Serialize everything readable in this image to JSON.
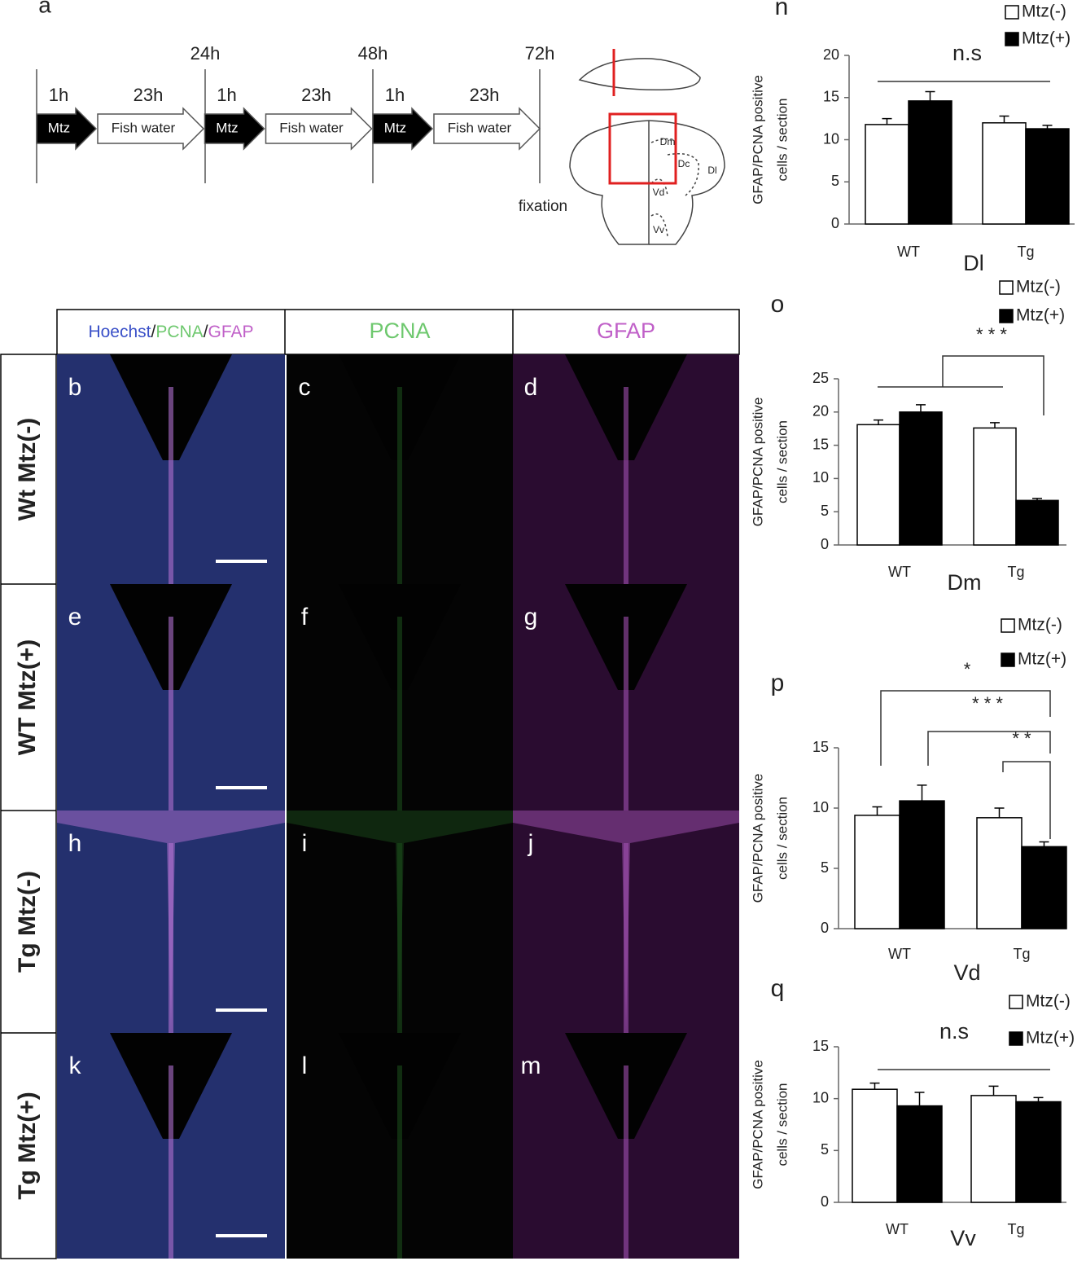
{
  "timeline": {
    "panel": "a",
    "times": [
      "24h",
      "48h",
      "72h"
    ],
    "steps": [
      {
        "hours": "1h",
        "label": "Mtz"
      },
      {
        "hours": "23h",
        "label": "Fish water"
      },
      {
        "hours": "1h",
        "label": "Mtz"
      },
      {
        "hours": "23h",
        "label": "Fish water"
      },
      {
        "hours": "1h",
        "label": "Mtz"
      },
      {
        "hours": "23h",
        "label": "Fish water"
      }
    ],
    "end": "fixation",
    "regions": [
      "Dm",
      "Dc",
      "Dl",
      "Vd",
      "Vv"
    ]
  },
  "micrographs": {
    "header": [
      {
        "parts": [
          "Hoechst",
          "/",
          "PCNA",
          "/",
          "GFAP"
        ]
      },
      {
        "parts": [
          "PCNA"
        ]
      },
      {
        "parts": [
          "GFAP"
        ]
      }
    ],
    "rows": [
      "Wt Mtz(-)",
      "WT Mtz(+)",
      "Tg Mtz(-)",
      "Tg Mtz(+)"
    ],
    "panels": [
      [
        "b",
        "c",
        "d"
      ],
      [
        "e",
        "f",
        "g"
      ],
      [
        "h",
        "i",
        "j"
      ],
      [
        "k",
        "l",
        "m"
      ]
    ]
  },
  "chart_data": [
    {
      "type": "bar",
      "panel": "n",
      "ylabel": [
        "GFAP/PCNA positive",
        "cells / section"
      ],
      "xlabel": "Dl",
      "categories": [
        "WT",
        "Tg"
      ],
      "series": [
        {
          "name": "Mtz(-)",
          "color": "#ffffff",
          "values": [
            11.8,
            12.0
          ],
          "errors": [
            0.7,
            0.8
          ]
        },
        {
          "name": "Mtz(+)",
          "color": "#000000",
          "values": [
            14.6,
            11.3
          ],
          "errors": [
            1.1,
            0.4
          ]
        }
      ],
      "ylim": [
        0,
        20
      ],
      "yticks": [
        0,
        5,
        10,
        15,
        20
      ],
      "annotations": [
        "n.s"
      ]
    },
    {
      "type": "bar",
      "panel": "o",
      "ylabel": [
        "GFAP/PCNA positive",
        "cells / section"
      ],
      "xlabel": "Dm",
      "categories": [
        "WT",
        "Tg"
      ],
      "series": [
        {
          "name": "Mtz(-)",
          "color": "#ffffff",
          "values": [
            18.1,
            17.6
          ],
          "errors": [
            0.7,
            0.8
          ]
        },
        {
          "name": "Mtz(+)",
          "color": "#000000",
          "values": [
            20.0,
            6.7
          ],
          "errors": [
            1.1,
            0.3
          ]
        }
      ],
      "ylim": [
        0,
        25
      ],
      "yticks": [
        0,
        5,
        10,
        15,
        20,
        25
      ],
      "annotations": [
        "* * *"
      ]
    },
    {
      "type": "bar",
      "panel": "p",
      "ylabel": [
        "GFAP/PCNA positive",
        "cells / section"
      ],
      "xlabel": "Vd",
      "categories": [
        "WT",
        "Tg"
      ],
      "series": [
        {
          "name": "Mtz(-)",
          "color": "#ffffff",
          "values": [
            9.4,
            9.2
          ],
          "errors": [
            0.7,
            0.8
          ]
        },
        {
          "name": "Mtz(+)",
          "color": "#000000",
          "values": [
            10.6,
            6.8
          ],
          "errors": [
            1.3,
            0.4
          ]
        }
      ],
      "ylim": [
        0,
        15
      ],
      "yticks": [
        0,
        5,
        10,
        15
      ],
      "annotations": [
        "*",
        "* * *",
        "* *"
      ]
    },
    {
      "type": "bar",
      "panel": "q",
      "ylabel": [
        "GFAP/PCNA positive",
        "cells / section"
      ],
      "xlabel": "Vv",
      "categories": [
        "WT",
        "Tg"
      ],
      "series": [
        {
          "name": "Mtz(-)",
          "color": "#ffffff",
          "values": [
            10.9,
            10.3
          ],
          "errors": [
            0.6,
            0.9
          ]
        },
        {
          "name": "Mtz(+)",
          "color": "#000000",
          "values": [
            9.3,
            9.7
          ],
          "errors": [
            1.3,
            0.4
          ]
        }
      ],
      "ylim": [
        0,
        15
      ],
      "yticks": [
        0,
        5,
        10,
        15
      ],
      "annotations": [
        "n.s"
      ]
    }
  ]
}
